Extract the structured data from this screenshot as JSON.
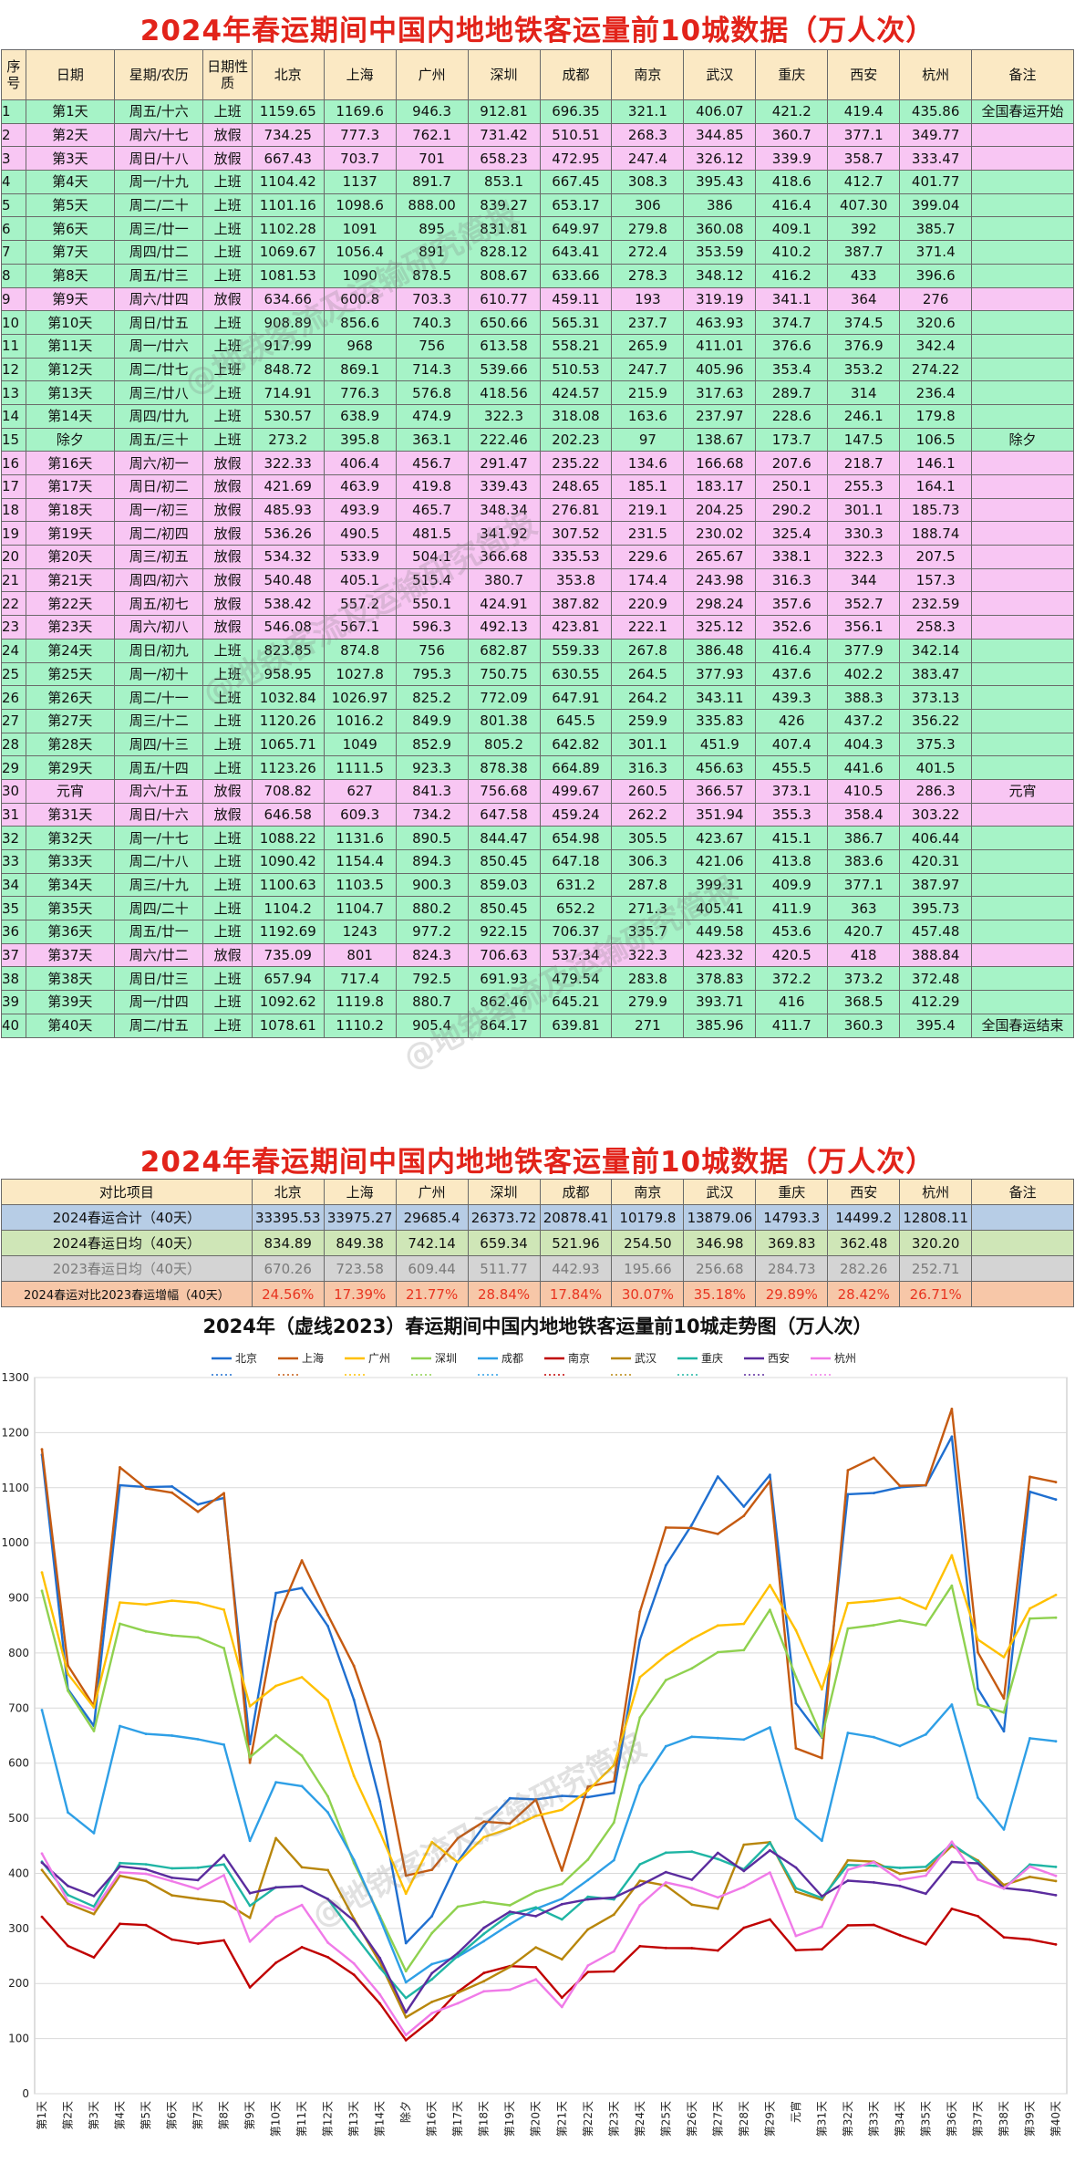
{
  "title1": "2024年春运期间中国内地地铁客运量前10城数据（万人次）",
  "title2": "2024年春运期间中国内地地铁客运量前10城数据（万人次）",
  "chart_title": "2024年（虚线2023）春运期间中国内地地铁客运量前10城走势图（万人次）",
  "watermark": "@地铁客流及运输研究简报",
  "table_headers": [
    "序号",
    "日期",
    "星期/农历",
    "日期性质",
    "北京",
    "上海",
    "广州",
    "深圳",
    "成都",
    "南京",
    "武汉",
    "重庆",
    "西安",
    "杭州",
    "备注"
  ],
  "rows": [
    [
      "1",
      "第1天",
      "周五/十六",
      "上班",
      "1159.65",
      "1169.6",
      "946.3",
      "912.81",
      "696.35",
      "321.1",
      "406.07",
      "421.2",
      "419.4",
      "435.86",
      "全国春运开始"
    ],
    [
      "2",
      "第2天",
      "周六/十七",
      "放假",
      "734.25",
      "777.3",
      "762.1",
      "731.42",
      "510.51",
      "268.3",
      "344.85",
      "360.7",
      "377.1",
      "349.77",
      ""
    ],
    [
      "3",
      "第3天",
      "周日/十八",
      "放假",
      "667.43",
      "703.7",
      "701",
      "658.23",
      "472.95",
      "247.4",
      "326.12",
      "339.9",
      "358.7",
      "333.47",
      ""
    ],
    [
      "4",
      "第4天",
      "周一/十九",
      "上班",
      "1104.42",
      "1137",
      "891.7",
      "853.1",
      "667.45",
      "308.3",
      "395.43",
      "418.6",
      "412.7",
      "401.77",
      ""
    ],
    [
      "5",
      "第5天",
      "周二/二十",
      "上班",
      "1101.16",
      "1098.6",
      "888.00",
      "839.27",
      "653.17",
      "306",
      "386",
      "416.4",
      "407.30",
      "399.04",
      ""
    ],
    [
      "6",
      "第6天",
      "周三/廿一",
      "上班",
      "1102.28",
      "1091",
      "895",
      "831.81",
      "649.97",
      "279.8",
      "360.08",
      "409.1",
      "392",
      "385.7",
      ""
    ],
    [
      "7",
      "第7天",
      "周四/廿二",
      "上班",
      "1069.67",
      "1056.4",
      "891",
      "828.12",
      "643.41",
      "272.4",
      "353.59",
      "410.2",
      "387.7",
      "371.4",
      ""
    ],
    [
      "8",
      "第8天",
      "周五/廿三",
      "上班",
      "1081.53",
      "1090",
      "878.5",
      "808.67",
      "633.66",
      "278.3",
      "348.12",
      "416.2",
      "433",
      "396.6",
      ""
    ],
    [
      "9",
      "第9天",
      "周六/廿四",
      "放假",
      "634.66",
      "600.8",
      "703.3",
      "610.77",
      "459.11",
      "193",
      "319.19",
      "341.1",
      "364",
      "276",
      ""
    ],
    [
      "10",
      "第10天",
      "周日/廿五",
      "上班",
      "908.89",
      "856.6",
      "740.3",
      "650.66",
      "565.31",
      "237.7",
      "463.93",
      "374.7",
      "374.5",
      "320.6",
      ""
    ],
    [
      "11",
      "第11天",
      "周一/廿六",
      "上班",
      "917.99",
      "968",
      "756",
      "613.58",
      "558.21",
      "265.9",
      "411.01",
      "376.6",
      "376.9",
      "342.4",
      ""
    ],
    [
      "12",
      "第12天",
      "周二/廿七",
      "上班",
      "848.72",
      "869.1",
      "714.3",
      "539.66",
      "510.53",
      "247.7",
      "405.96",
      "353.4",
      "353.2",
      "274.22",
      ""
    ],
    [
      "13",
      "第13天",
      "周三/廿八",
      "上班",
      "714.91",
      "776.3",
      "576.8",
      "418.56",
      "424.57",
      "215.9",
      "317.63",
      "289.7",
      "314",
      "236.4",
      ""
    ],
    [
      "14",
      "第14天",
      "周四/廿九",
      "上班",
      "530.57",
      "638.9",
      "474.9",
      "322.3",
      "318.08",
      "163.6",
      "237.97",
      "228.6",
      "246.1",
      "179.8",
      ""
    ],
    [
      "15",
      "除夕",
      "周五/三十",
      "上班",
      "273.2",
      "395.8",
      "363.1",
      "222.46",
      "202.23",
      "97",
      "138.67",
      "173.7",
      "147.5",
      "106.5",
      "除夕"
    ],
    [
      "16",
      "第16天",
      "周六/初一",
      "放假",
      "322.33",
      "406.4",
      "456.7",
      "291.47",
      "235.22",
      "134.6",
      "166.68",
      "207.6",
      "218.7",
      "146.1",
      ""
    ],
    [
      "17",
      "第17天",
      "周日/初二",
      "放假",
      "421.69",
      "463.9",
      "419.8",
      "339.43",
      "248.65",
      "185.1",
      "183.17",
      "250.1",
      "255.3",
      "164.1",
      ""
    ],
    [
      "18",
      "第18天",
      "周一/初三",
      "放假",
      "485.93",
      "493.9",
      "465.7",
      "348.34",
      "276.81",
      "219.1",
      "204.25",
      "290.2",
      "301.1",
      "185.73",
      ""
    ],
    [
      "19",
      "第19天",
      "周二/初四",
      "放假",
      "536.26",
      "490.5",
      "481.5",
      "341.92",
      "307.52",
      "231.5",
      "230.02",
      "325.4",
      "330.3",
      "188.74",
      ""
    ],
    [
      "20",
      "第20天",
      "周三/初五",
      "放假",
      "534.32",
      "533.9",
      "504.1",
      "366.68",
      "335.53",
      "229.6",
      "265.67",
      "338.1",
      "322.3",
      "207.5",
      ""
    ],
    [
      "21",
      "第21天",
      "周四/初六",
      "放假",
      "540.48",
      "405.1",
      "515.4",
      "380.7",
      "353.8",
      "174.4",
      "243.98",
      "316.3",
      "344",
      "157.3",
      ""
    ],
    [
      "22",
      "第22天",
      "周五/初七",
      "放假",
      "538.42",
      "557.2",
      "550.1",
      "424.91",
      "387.82",
      "220.9",
      "298.24",
      "357.6",
      "352.7",
      "232.59",
      ""
    ],
    [
      "23",
      "第23天",
      "周六/初八",
      "放假",
      "546.08",
      "567.1",
      "596.3",
      "492.13",
      "423.81",
      "222.1",
      "325.12",
      "352.6",
      "356.1",
      "258.3",
      ""
    ],
    [
      "24",
      "第24天",
      "周日/初九",
      "上班",
      "823.85",
      "874.8",
      "756",
      "682.87",
      "559.33",
      "267.8",
      "386.48",
      "416.4",
      "377.9",
      "342.14",
      ""
    ],
    [
      "25",
      "第25天",
      "周一/初十",
      "上班",
      "958.95",
      "1027.8",
      "795.3",
      "750.75",
      "630.55",
      "264.5",
      "377.93",
      "437.6",
      "402.2",
      "383.47",
      ""
    ],
    [
      "26",
      "第26天",
      "周二/十一",
      "上班",
      "1032.84",
      "1026.97",
      "825.2",
      "772.09",
      "647.91",
      "264.2",
      "343.11",
      "439.3",
      "388.3",
      "373.13",
      ""
    ],
    [
      "27",
      "第27天",
      "周三/十二",
      "上班",
      "1120.26",
      "1016.2",
      "849.9",
      "801.38",
      "645.5",
      "259.9",
      "335.83",
      "426",
      "437.2",
      "356.22",
      ""
    ],
    [
      "28",
      "第28天",
      "周四/十三",
      "上班",
      "1065.71",
      "1049",
      "852.9",
      "805.2",
      "642.82",
      "301.1",
      "451.9",
      "407.4",
      "404.3",
      "375.3",
      ""
    ],
    [
      "29",
      "第29天",
      "周五/十四",
      "上班",
      "1123.26",
      "1111.5",
      "923.3",
      "878.38",
      "664.89",
      "316.3",
      "456.63",
      "455.5",
      "441.6",
      "401.5",
      ""
    ],
    [
      "30",
      "元宵",
      "周六/十五",
      "放假",
      "708.82",
      "627",
      "841.3",
      "756.68",
      "499.67",
      "260.5",
      "366.57",
      "373.1",
      "410.5",
      "286.3",
      "元宵"
    ],
    [
      "31",
      "第31天",
      "周日/十六",
      "放假",
      "646.58",
      "609.3",
      "734.2",
      "647.58",
      "459.24",
      "262.2",
      "351.94",
      "355.3",
      "358.4",
      "303.22",
      ""
    ],
    [
      "32",
      "第32天",
      "周一/十七",
      "上班",
      "1088.22",
      "1131.6",
      "890.5",
      "844.47",
      "654.98",
      "305.5",
      "423.67",
      "415.1",
      "386.7",
      "406.44",
      ""
    ],
    [
      "33",
      "第33天",
      "周二/十八",
      "上班",
      "1090.42",
      "1154.4",
      "894.3",
      "850.45",
      "647.18",
      "306.3",
      "421.06",
      "413.8",
      "383.6",
      "420.31",
      ""
    ],
    [
      "34",
      "第34天",
      "周三/十九",
      "上班",
      "1100.63",
      "1103.5",
      "900.3",
      "859.03",
      "631.2",
      "287.8",
      "399.31",
      "409.9",
      "377.1",
      "387.97",
      ""
    ],
    [
      "35",
      "第35天",
      "周四/二十",
      "上班",
      "1104.2",
      "1104.7",
      "880.2",
      "850.45",
      "652.2",
      "271.3",
      "405.41",
      "411.9",
      "363",
      "395.73",
      ""
    ],
    [
      "36",
      "第36天",
      "周五/廿一",
      "上班",
      "1192.69",
      "1243",
      "977.2",
      "922.15",
      "706.37",
      "335.7",
      "449.58",
      "453.6",
      "420.7",
      "457.48",
      ""
    ],
    [
      "37",
      "第37天",
      "周六/廿二",
      "放假",
      "735.09",
      "801",
      "824.3",
      "706.63",
      "537.34",
      "322.3",
      "423.32",
      "420.5",
      "418",
      "388.84",
      ""
    ],
    [
      "38",
      "第38天",
      "周日/廿三",
      "上班",
      "657.94",
      "717.4",
      "792.5",
      "691.93",
      "479.54",
      "283.8",
      "378.83",
      "372.2",
      "373.2",
      "372.48",
      ""
    ],
    [
      "39",
      "第39天",
      "周一/廿四",
      "上班",
      "1092.62",
      "1119.8",
      "880.7",
      "862.46",
      "645.21",
      "279.9",
      "393.71",
      "416",
      "368.5",
      "412.29",
      ""
    ],
    [
      "40",
      "第40天",
      "周二/廿五",
      "上班",
      "1078.61",
      "1110.2",
      "905.4",
      "864.17",
      "639.81",
      "271",
      "385.96",
      "411.7",
      "360.3",
      "395.4",
      "全国春运结束"
    ]
  ],
  "compare_headers": [
    "对比项目",
    "北京",
    "上海",
    "广州",
    "深圳",
    "成都",
    "南京",
    "武汉",
    "重庆",
    "西安",
    "杭州",
    "备注"
  ],
  "compare_rows": [
    [
      "2024春运合计（40天）",
      "33395.53",
      "33975.27",
      "29685.4",
      "26373.72",
      "20878.41",
      "10179.8",
      "13879.06",
      "14793.3",
      "14499.2",
      "12808.11",
      ""
    ],
    [
      "2024春运日均（40天）",
      "834.89",
      "849.38",
      "742.14",
      "659.34",
      "521.96",
      "254.50",
      "346.98",
      "369.83",
      "362.48",
      "320.20",
      ""
    ],
    [
      "2023春运日均（40天）",
      "670.26",
      "723.58",
      "609.44",
      "511.77",
      "442.93",
      "195.66",
      "256.68",
      "284.73",
      "282.26",
      "252.71",
      ""
    ],
    [
      "2024春运对比2023春运增幅（40天）",
      "24.56%",
      "17.39%",
      "21.77%",
      "28.84%",
      "17.84%",
      "30.07%",
      "35.18%",
      "29.89%",
      "28.42%",
      "26.71%",
      ""
    ]
  ],
  "chart_data": {
    "type": "line",
    "title": "2024年（虚线2023）春运期间中国内地地铁客运量前10城走势图（万人次）",
    "categories": [
      "第1天",
      "第2天",
      "第3天",
      "第4天",
      "第5天",
      "第6天",
      "第7天",
      "第8天",
      "第9天",
      "第10天",
      "第11天",
      "第12天",
      "第13天",
      "第14天",
      "除夕",
      "第16天",
      "第17天",
      "第18天",
      "第19天",
      "第20天",
      "第21天",
      "第22天",
      "第23天",
      "第24天",
      "第25天",
      "第26天",
      "第27天",
      "第28天",
      "第29天",
      "元宵",
      "第31天",
      "第32天",
      "第33天",
      "第34天",
      "第35天",
      "第36天",
      "第37天",
      "第38天",
      "第39天",
      "第40天"
    ],
    "ylim": [
      0,
      1300
    ],
    "yticks": [
      0,
      100,
      200,
      300,
      400,
      500,
      600,
      700,
      800,
      900,
      1000,
      1100,
      1200,
      1300
    ],
    "grid": true,
    "legend_placement": "top-center",
    "series": [
      {
        "name": "北京",
        "color": "#1f6fd0",
        "values": [
          1159.65,
          734.25,
          667.43,
          1104.42,
          1101.16,
          1102.28,
          1069.67,
          1081.53,
          634.66,
          908.89,
          917.99,
          848.72,
          714.91,
          530.57,
          273.2,
          322.33,
          421.69,
          485.93,
          536.26,
          534.32,
          540.48,
          538.42,
          546.08,
          823.85,
          958.95,
          1032.84,
          1120.26,
          1065.71,
          1123.26,
          708.82,
          646.58,
          1088.22,
          1090.42,
          1100.63,
          1104.2,
          1192.69,
          735.09,
          657.94,
          1092.62,
          1078.61
        ]
      },
      {
        "name": "上海",
        "color": "#c55a11",
        "values": [
          1169.6,
          777.3,
          703.7,
          1137,
          1098.6,
          1091,
          1056.4,
          1090,
          600.8,
          856.6,
          968,
          869.1,
          776.3,
          638.9,
          395.8,
          406.4,
          463.9,
          493.9,
          490.5,
          533.9,
          405.1,
          557.2,
          567.1,
          874.8,
          1027.8,
          1026.97,
          1016.2,
          1049,
          1111.5,
          627,
          609.3,
          1131.6,
          1154.4,
          1103.5,
          1104.7,
          1243,
          801,
          717.4,
          1119.8,
          1110.2
        ]
      },
      {
        "name": "广州",
        "color": "#ffc000",
        "values": [
          946.3,
          762.1,
          701,
          891.7,
          888.0,
          895,
          891,
          878.5,
          703.3,
          740.3,
          756,
          714.3,
          576.8,
          474.9,
          363.1,
          456.7,
          419.8,
          465.7,
          481.5,
          504.1,
          515.4,
          550.1,
          596.3,
          756,
          795.3,
          825.2,
          849.9,
          852.9,
          923.3,
          841.3,
          734.2,
          890.5,
          894.3,
          900.3,
          880.2,
          977.2,
          824.3,
          792.5,
          880.7,
          905.4
        ]
      },
      {
        "name": "深圳",
        "color": "#8fd14f",
        "values": [
          912.81,
          731.42,
          658.23,
          853.1,
          839.27,
          831.81,
          828.12,
          808.67,
          610.77,
          650.66,
          613.58,
          539.66,
          418.56,
          322.3,
          222.46,
          291.47,
          339.43,
          348.34,
          341.92,
          366.68,
          380.7,
          424.91,
          492.13,
          682.87,
          750.75,
          772.09,
          801.38,
          805.2,
          878.38,
          756.68,
          647.58,
          844.47,
          850.45,
          859.03,
          850.45,
          922.15,
          706.63,
          691.93,
          862.46,
          864.17
        ]
      },
      {
        "name": "成都",
        "color": "#2e9fe6",
        "values": [
          696.35,
          510.51,
          472.95,
          667.45,
          653.17,
          649.97,
          643.41,
          633.66,
          459.11,
          565.31,
          558.21,
          510.53,
          424.57,
          318.08,
          202.23,
          235.22,
          248.65,
          276.81,
          307.52,
          335.53,
          353.8,
          387.82,
          423.81,
          559.33,
          630.55,
          647.91,
          645.5,
          642.82,
          664.89,
          499.67,
          459.24,
          654.98,
          647.18,
          631.2,
          652.2,
          706.37,
          537.34,
          479.54,
          645.21,
          639.81
        ]
      },
      {
        "name": "南京",
        "color": "#c00000",
        "values": [
          321.1,
          268.3,
          247.4,
          308.3,
          306,
          279.8,
          272.4,
          278.3,
          193,
          237.7,
          265.9,
          247.7,
          215.9,
          163.6,
          97,
          134.6,
          185.1,
          219.1,
          231.5,
          229.6,
          174.4,
          220.9,
          222.1,
          267.8,
          264.5,
          264.2,
          259.9,
          301.1,
          316.3,
          260.5,
          262.2,
          305.5,
          306.3,
          287.8,
          271.3,
          335.7,
          322.3,
          283.8,
          279.9,
          271
        ]
      },
      {
        "name": "武汉",
        "color": "#b8860b",
        "values": [
          406.07,
          344.85,
          326.12,
          395.43,
          386,
          360.08,
          353.59,
          348.12,
          319.19,
          463.93,
          411.01,
          405.96,
          317.63,
          237.97,
          138.67,
          166.68,
          183.17,
          204.25,
          230.02,
          265.67,
          243.98,
          298.24,
          325.12,
          386.48,
          377.93,
          343.11,
          335.83,
          451.9,
          456.63,
          366.57,
          351.94,
          423.67,
          421.06,
          399.31,
          405.41,
          449.58,
          423.32,
          378.83,
          393.71,
          385.96
        ]
      },
      {
        "name": "重庆",
        "color": "#1fb5a4",
        "values": [
          421.2,
          360.7,
          339.9,
          418.6,
          416.4,
          409.1,
          410.2,
          416.2,
          341.1,
          374.7,
          376.6,
          353.4,
          289.7,
          228.6,
          173.7,
          207.6,
          250.1,
          290.2,
          325.4,
          338.1,
          316.3,
          357.6,
          352.6,
          416.4,
          437.6,
          439.3,
          426,
          407.4,
          455.5,
          373.1,
          355.3,
          415.1,
          413.8,
          409.9,
          411.9,
          453.6,
          420.5,
          372.2,
          416,
          411.7
        ]
      },
      {
        "name": "西安",
        "color": "#5b2c9e",
        "values": [
          419.4,
          377.1,
          358.7,
          412.7,
          407.3,
          392,
          387.7,
          433,
          364,
          374.5,
          376.9,
          353.2,
          314,
          246.1,
          147.5,
          218.7,
          255.3,
          301.1,
          330.3,
          322.3,
          344,
          352.7,
          356.1,
          377.9,
          402.2,
          388.3,
          437.2,
          404.3,
          441.6,
          410.5,
          358.4,
          386.7,
          383.6,
          377.1,
          363,
          420.7,
          418,
          373.2,
          368.5,
          360.3
        ]
      },
      {
        "name": "杭州",
        "color": "#f07ae8",
        "values": [
          435.86,
          349.77,
          333.47,
          401.77,
          399.04,
          385.7,
          371.4,
          396.6,
          276,
          320.6,
          342.4,
          274.22,
          236.4,
          179.8,
          106.5,
          146.1,
          164.1,
          185.73,
          188.74,
          207.5,
          157.3,
          232.59,
          258.3,
          342.14,
          383.47,
          373.13,
          356.22,
          375.3,
          401.5,
          286.3,
          303.22,
          406.44,
          420.31,
          387.97,
          395.73,
          457.48,
          388.84,
          372.48,
          412.29,
          395.4
        ]
      }
    ]
  }
}
